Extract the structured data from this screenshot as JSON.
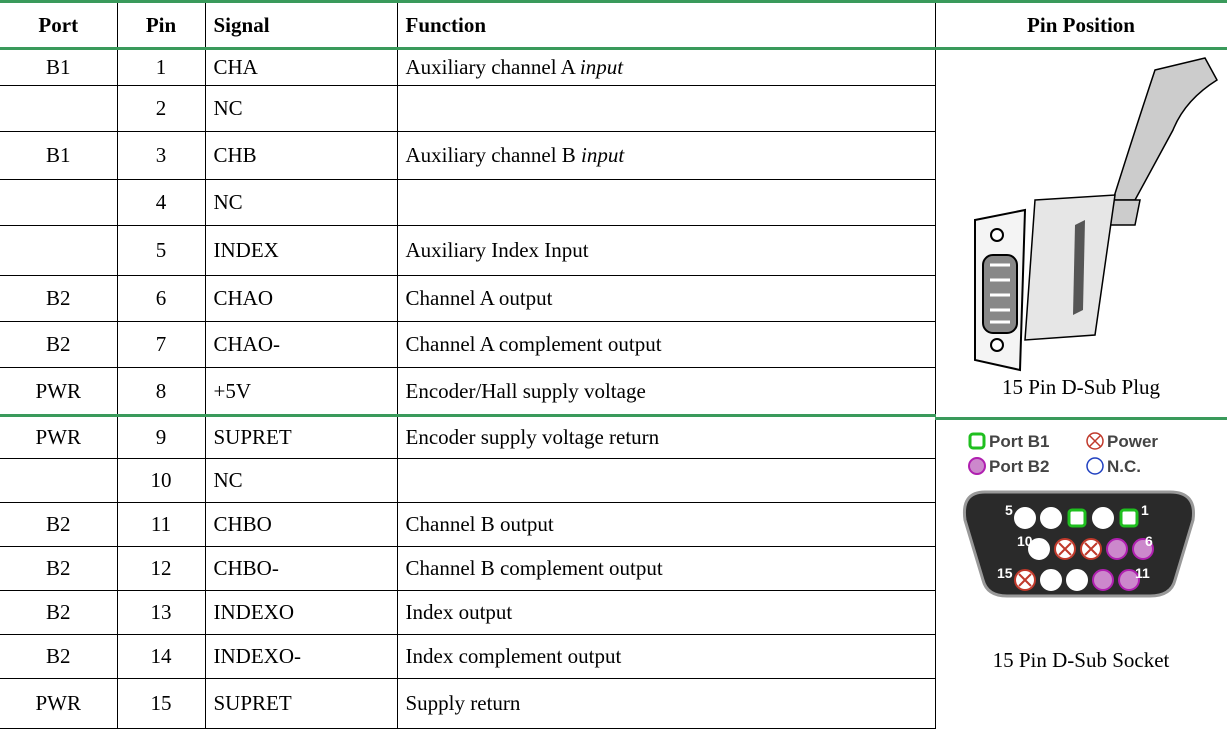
{
  "header": [
    "Port",
    "Pin",
    "Signal",
    "Function",
    "Pin Position"
  ],
  "rows": [
    {
      "port": "B1",
      "pin": 1,
      "signal": "CHA",
      "function": "Auxiliary channel A",
      "function_italic": "input"
    },
    {
      "port": null,
      "pin": 2,
      "signal": "NC",
      "function": null
    },
    {
      "port": "B1",
      "pin": 3,
      "signal": "CHB",
      "function": "Auxiliary channel B",
      "function_italic": "input"
    },
    {
      "port": null,
      "pin": 4,
      "signal": "NC",
      "function": null
    },
    {
      "port": null,
      "pin": 5,
      "signal": "INDEX",
      "function": "Auxiliary Index Input"
    },
    {
      "port": "B2",
      "pin": 6,
      "signal": "CHAO",
      "function": "Channel A output"
    },
    {
      "port": "B2",
      "pin": 7,
      "signal": "CHAO-",
      "function": "Channel A complement output"
    },
    {
      "port": "PWR",
      "pin": 8,
      "signal": "+5V",
      "function": "Encoder/Hall supply voltage"
    },
    {
      "port": "PWR",
      "pin": 9,
      "signal": "SUPRET",
      "function": "Encoder supply voltage return"
    },
    {
      "port": null,
      "pin": 10,
      "signal": "NC",
      "function": null
    },
    {
      "port": "B2",
      "pin": 11,
      "signal": "CHBO",
      "function": "Channel B output"
    },
    {
      "port": "B2",
      "pin": 12,
      "signal": "CHBO-",
      "function": "Channel B complement output"
    },
    {
      "port": "B2",
      "pin": 13,
      "signal": "INDEXO",
      "function": "Index output"
    },
    {
      "port": "B2",
      "pin": 14,
      "signal": "INDEXO-",
      "function": "Index complement output"
    },
    {
      "port": "PWR",
      "pin": 15,
      "signal": "SUPRET",
      "function": "Supply return"
    }
  ],
  "plug": {
    "caption": "15 Pin D-Sub Plug"
  },
  "socket": {
    "caption": "15 Pin D-Sub Socket",
    "legend": [
      "Port B1",
      "Power",
      "Port B2",
      "N.C."
    ],
    "pin_labels": [
      5,
      1,
      10,
      6,
      15,
      11
    ]
  }
}
